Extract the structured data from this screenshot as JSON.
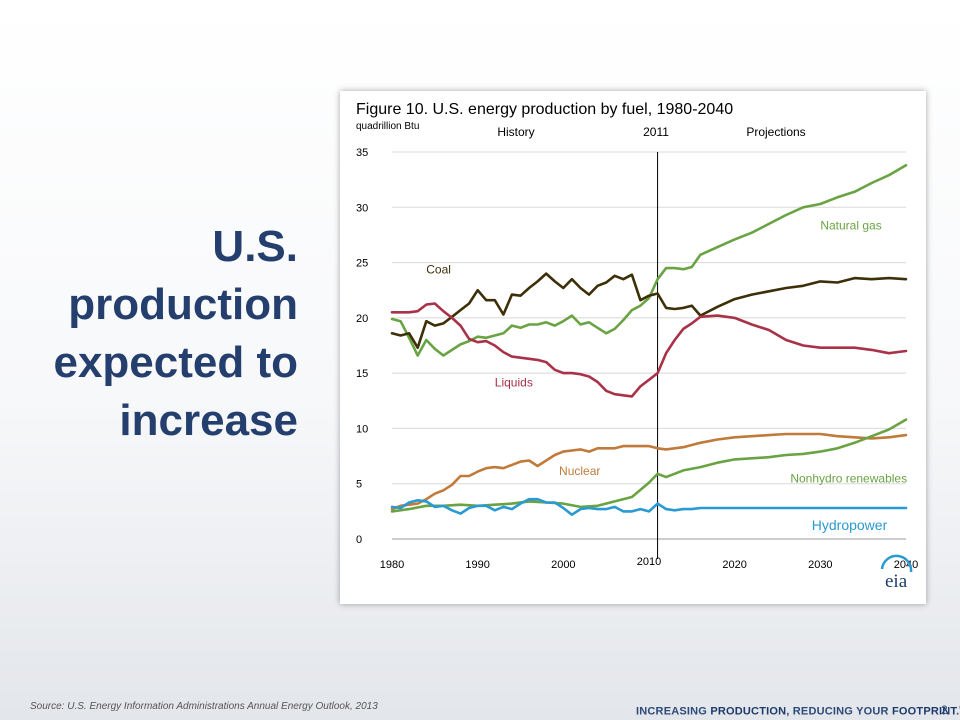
{
  "slide": {
    "title_lines": [
      "U.S.",
      "production",
      "expected to",
      "increase"
    ],
    "source": "Source: U.S. Energy Information Administrations Annual Energy Outlook, 2013",
    "tagline_parts": [
      "INCREASING ",
      "PRODUCTION",
      ", REDUCING YOUR ",
      "FOOTPRINT",
      ".",
      "®"
    ],
    "page_number": "2",
    "title_color": "#243f6e"
  },
  "chart_data": {
    "type": "line",
    "title": "Figure 10. U.S. energy production by fuel, 1980-2040",
    "ylabel": "quadrillion Btu",
    "xlabel": "",
    "xlim": [
      1980,
      2040
    ],
    "ylim": [
      0,
      35
    ],
    "x_ticks": [
      1980,
      1990,
      2000,
      2010,
      2020,
      2030,
      2040
    ],
    "y_ticks": [
      0,
      5,
      10,
      15,
      20,
      25,
      30,
      35
    ],
    "grid": "horizontal",
    "divider": {
      "x": 2011,
      "label": "2011"
    },
    "region_labels": {
      "history": "History",
      "projections": "Projections"
    },
    "logo": "eia",
    "series": [
      {
        "name": "Natural gas",
        "color": "#6aa343",
        "x": [
          1980,
          1981,
          1982,
          1983,
          1984,
          1985,
          1986,
          1987,
          1988,
          1989,
          1990,
          1991,
          1992,
          1993,
          1994,
          1995,
          1996,
          1997,
          1998,
          1999,
          2000,
          2001,
          2002,
          2003,
          2004,
          2005,
          2006,
          2007,
          2008,
          2009,
          2010,
          2011,
          2012,
          2013,
          2014,
          2015,
          2016,
          2018,
          2020,
          2022,
          2024,
          2026,
          2028,
          2030,
          2032,
          2034,
          2036,
          2038,
          2040
        ],
        "y": [
          19.9,
          19.7,
          18.2,
          16.6,
          18.0,
          17.2,
          16.6,
          17.1,
          17.6,
          17.9,
          18.3,
          18.2,
          18.4,
          18.6,
          19.3,
          19.1,
          19.4,
          19.4,
          19.6,
          19.3,
          19.7,
          20.2,
          19.4,
          19.6,
          19.1,
          18.6,
          19.0,
          19.8,
          20.7,
          21.1,
          21.8,
          23.5,
          24.5,
          24.5,
          24.4,
          24.6,
          25.7,
          26.4,
          27.1,
          27.7,
          28.5,
          29.3,
          30.0,
          30.3,
          30.9,
          31.4,
          32.2,
          32.9,
          33.8
        ]
      },
      {
        "name": "Coal",
        "color": "#3d3008",
        "x": [
          1980,
          1981,
          1982,
          1983,
          1984,
          1985,
          1986,
          1987,
          1988,
          1989,
          1990,
          1991,
          1992,
          1993,
          1994,
          1995,
          1996,
          1997,
          1998,
          1999,
          2000,
          2001,
          2002,
          2003,
          2004,
          2005,
          2006,
          2007,
          2008,
          2009,
          2010,
          2011,
          2012,
          2013,
          2014,
          2015,
          2016,
          2018,
          2020,
          2022,
          2024,
          2026,
          2028,
          2030,
          2032,
          2034,
          2036,
          2038,
          2040
        ],
        "y": [
          18.6,
          18.4,
          18.6,
          17.3,
          19.7,
          19.3,
          19.5,
          20.1,
          20.7,
          21.3,
          22.5,
          21.6,
          21.6,
          20.3,
          22.1,
          22.0,
          22.7,
          23.3,
          24.0,
          23.3,
          22.7,
          23.5,
          22.7,
          22.1,
          22.9,
          23.2,
          23.8,
          23.5,
          23.9,
          21.6,
          22.0,
          22.2,
          20.9,
          20.8,
          20.9,
          21.1,
          20.2,
          21.0,
          21.7,
          22.1,
          22.4,
          22.7,
          22.9,
          23.3,
          23.2,
          23.6,
          23.5,
          23.6,
          23.5
        ]
      },
      {
        "name": "Liquids",
        "color": "#a83248",
        "x": [
          1980,
          1981,
          1982,
          1983,
          1984,
          1985,
          1986,
          1987,
          1988,
          1989,
          1990,
          1991,
          1992,
          1993,
          1994,
          1995,
          1996,
          1997,
          1998,
          1999,
          2000,
          2001,
          2002,
          2003,
          2004,
          2005,
          2006,
          2007,
          2008,
          2009,
          2010,
          2011,
          2012,
          2013,
          2014,
          2015,
          2016,
          2018,
          2020,
          2022,
          2024,
          2026,
          2028,
          2030,
          2032,
          2034,
          2036,
          2038,
          2040
        ],
        "y": [
          20.5,
          20.5,
          20.5,
          20.6,
          21.2,
          21.3,
          20.6,
          20.0,
          19.3,
          18.1,
          17.8,
          17.9,
          17.5,
          16.9,
          16.5,
          16.4,
          16.3,
          16.2,
          16.0,
          15.3,
          15.0,
          15.0,
          14.9,
          14.7,
          14.2,
          13.4,
          13.1,
          13.0,
          12.9,
          13.8,
          14.4,
          15.0,
          16.8,
          18.0,
          19.0,
          19.5,
          20.1,
          20.2,
          20.0,
          19.4,
          18.9,
          18.0,
          17.5,
          17.3,
          17.3,
          17.3,
          17.1,
          16.8,
          17.0
        ]
      },
      {
        "name": "Nuclear",
        "color": "#c07a3a",
        "x": [
          1980,
          1981,
          1982,
          1983,
          1984,
          1985,
          1986,
          1987,
          1988,
          1989,
          1990,
          1991,
          1992,
          1993,
          1994,
          1995,
          1996,
          1997,
          1998,
          1999,
          2000,
          2001,
          2002,
          2003,
          2004,
          2005,
          2006,
          2007,
          2008,
          2009,
          2010,
          2011,
          2012,
          2013,
          2014,
          2015,
          2016,
          2018,
          2020,
          2022,
          2024,
          2026,
          2028,
          2030,
          2032,
          2034,
          2036,
          2038,
          2040
        ],
        "y": [
          2.7,
          3.0,
          3.1,
          3.2,
          3.6,
          4.1,
          4.4,
          4.9,
          5.7,
          5.7,
          6.1,
          6.4,
          6.5,
          6.4,
          6.7,
          7.0,
          7.1,
          6.6,
          7.1,
          7.6,
          7.9,
          8.0,
          8.1,
          7.9,
          8.2,
          8.2,
          8.2,
          8.4,
          8.4,
          8.4,
          8.4,
          8.2,
          8.1,
          8.2,
          8.3,
          8.5,
          8.7,
          9.0,
          9.2,
          9.3,
          9.4,
          9.5,
          9.5,
          9.5,
          9.3,
          9.2,
          9.1,
          9.2,
          9.4
        ]
      },
      {
        "name": "Nonhydro renewables",
        "color": "#6aa343",
        "x": [
          1980,
          1982,
          1984,
          1986,
          1988,
          1990,
          1992,
          1994,
          1996,
          1998,
          2000,
          2002,
          2004,
          2006,
          2008,
          2010,
          2011,
          2012,
          2014,
          2016,
          2018,
          2020,
          2022,
          2024,
          2026,
          2028,
          2030,
          2032,
          2034,
          2036,
          2038,
          2040
        ],
        "y": [
          2.5,
          2.7,
          3.0,
          3.0,
          3.1,
          3.0,
          3.1,
          3.2,
          3.4,
          3.3,
          3.2,
          2.9,
          3.0,
          3.4,
          3.8,
          5.1,
          5.9,
          5.6,
          6.2,
          6.5,
          6.9,
          7.2,
          7.3,
          7.4,
          7.6,
          7.7,
          7.9,
          8.2,
          8.7,
          9.3,
          9.9,
          10.8
        ]
      },
      {
        "name": "Hydropower",
        "color": "#2a9ad2",
        "x": [
          1980,
          1981,
          1982,
          1983,
          1984,
          1985,
          1986,
          1987,
          1988,
          1989,
          1990,
          1991,
          1992,
          1993,
          1994,
          1995,
          1996,
          1997,
          1998,
          1999,
          2000,
          2001,
          2002,
          2003,
          2004,
          2005,
          2006,
          2007,
          2008,
          2009,
          2010,
          2011,
          2012,
          2013,
          2014,
          2015,
          2016,
          2018,
          2020,
          2022,
          2024,
          2026,
          2028,
          2030,
          2032,
          2034,
          2036,
          2038,
          2040
        ],
        "y": [
          2.9,
          2.8,
          3.3,
          3.5,
          3.4,
          2.9,
          3.0,
          2.6,
          2.3,
          2.8,
          3.0,
          3.0,
          2.6,
          2.9,
          2.7,
          3.2,
          3.6,
          3.6,
          3.3,
          3.3,
          2.8,
          2.2,
          2.7,
          2.8,
          2.7,
          2.7,
          2.9,
          2.5,
          2.5,
          2.7,
          2.5,
          3.2,
          2.7,
          2.6,
          2.7,
          2.7,
          2.8,
          2.8,
          2.8,
          2.8,
          2.8,
          2.8,
          2.8,
          2.8,
          2.8,
          2.8,
          2.8,
          2.8,
          2.8
        ]
      }
    ],
    "annotations": [
      {
        "text": "Natural gas",
        "x": 2030,
        "y": 28,
        "color": "#6aa343",
        "size": 12
      },
      {
        "text": "Coal",
        "x": 1984,
        "y": 24.0,
        "color": "#3d3008",
        "size": 12
      },
      {
        "text": "Liquids",
        "x": 1992,
        "y": 13.8,
        "color": "#a83248",
        "size": 12
      },
      {
        "text": "Nuclear",
        "x": 1999.5,
        "y": 5.8,
        "color": "#c07a3a",
        "size": 12
      },
      {
        "text": "Nonhydro renewables",
        "x": 2026.5,
        "y": 5.1,
        "color": "#6aa343",
        "size": 12
      },
      {
        "text": "Hydropower",
        "x": 2029,
        "y": 0.8,
        "color": "#2a9ad2",
        "size": 14
      }
    ]
  }
}
